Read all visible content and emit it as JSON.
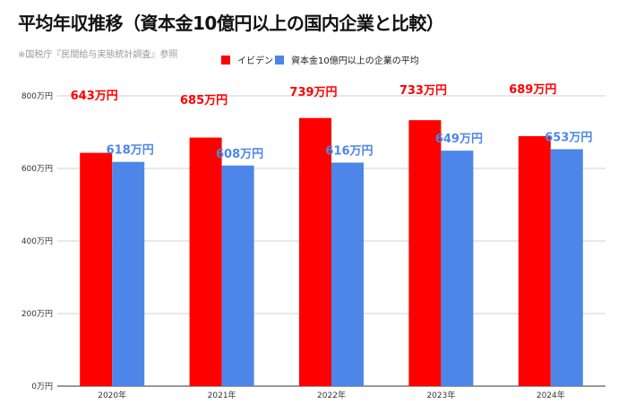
{
  "chart_data": {
    "type": "bar",
    "title": "平均年収推移（資本金10億円以上の国内企業と比較）",
    "subtitle": "※国税庁『民間給与実態統計調査』参照",
    "categories": [
      "2020年",
      "2021年",
      "2022年",
      "2023年",
      "2024年"
    ],
    "series": [
      {
        "name": "イビデン",
        "values": [
          643,
          685,
          739,
          733,
          689
        ],
        "labels": [
          "643万円",
          "685万円",
          "739万円",
          "733万円",
          "689万円"
        ],
        "color": "#ff0000",
        "label_color": "#ff0000"
      },
      {
        "name": "資本金10億円以上の企業の平均",
        "values": [
          618,
          608,
          616,
          649,
          653
        ],
        "labels": [
          "618万円",
          "608万円",
          "616万円",
          "649万円",
          "653万円"
        ],
        "color": "#4d86e8",
        "label_color": "#4d86e8"
      }
    ],
    "ylim": [
      0,
      800
    ],
    "yticks": [
      0,
      200,
      400,
      600,
      800
    ],
    "ytick_labels": [
      "0万円",
      "200万円",
      "400万円",
      "600万円",
      "800万円"
    ],
    "xlabel": "",
    "ylabel": "",
    "grid": true,
    "legend_position": "top"
  }
}
